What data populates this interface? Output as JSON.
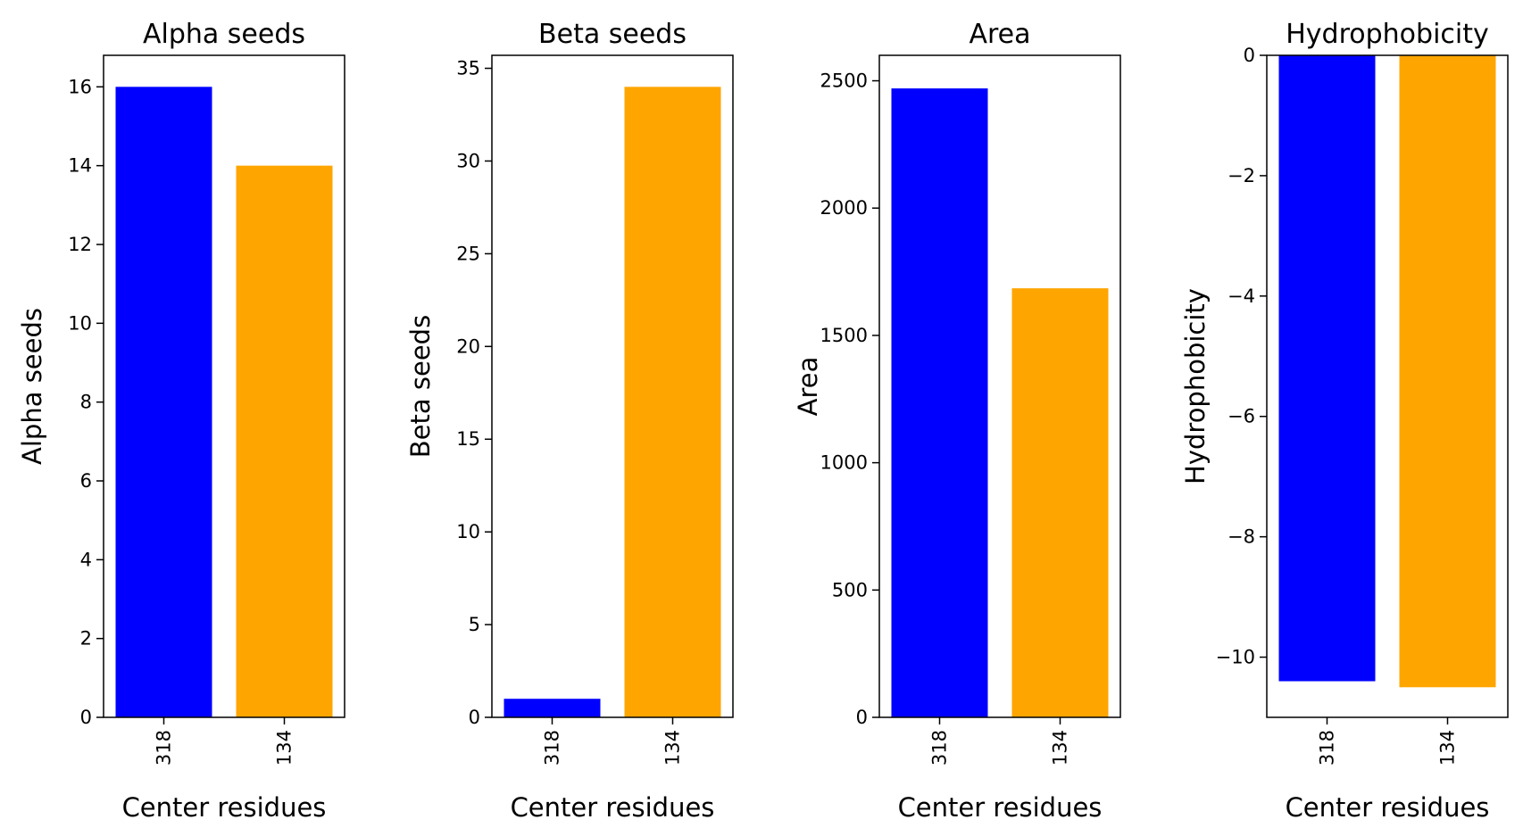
{
  "chart_data": [
    {
      "type": "bar",
      "title": "Alpha seeds",
      "xlabel": "Center residues",
      "ylabel": "Alpha seeds",
      "categories": [
        "318",
        "134"
      ],
      "values": [
        16,
        14
      ],
      "colors": [
        "#0000ff",
        "#ffa500"
      ],
      "ylim": [
        0,
        16.8
      ],
      "yticks": [
        0,
        2,
        4,
        6,
        8,
        10,
        12,
        14,
        16
      ],
      "grid": false
    },
    {
      "type": "bar",
      "title": "Beta seeds",
      "xlabel": "Center residues",
      "ylabel": "Beta seeds",
      "categories": [
        "318",
        "134"
      ],
      "values": [
        1,
        34
      ],
      "colors": [
        "#0000ff",
        "#ffa500"
      ],
      "ylim": [
        0,
        35.7
      ],
      "yticks": [
        0,
        5,
        10,
        15,
        20,
        25,
        30,
        35
      ],
      "grid": false
    },
    {
      "type": "bar",
      "title": "Area",
      "xlabel": "Center residues",
      "ylabel": "Area",
      "categories": [
        "318",
        "134"
      ],
      "values": [
        2470,
        1685
      ],
      "colors": [
        "#0000ff",
        "#ffa500"
      ],
      "ylim": [
        0,
        2600
      ],
      "yticks": [
        0,
        500,
        1000,
        1500,
        2000,
        2500
      ],
      "grid": false
    },
    {
      "type": "bar",
      "title": "Hydrophobicity",
      "xlabel": "Center residues",
      "ylabel": "Hydrophobicity",
      "categories": [
        "318",
        "134"
      ],
      "values": [
        -10.4,
        -10.5
      ],
      "colors": [
        "#0000ff",
        "#ffa500"
      ],
      "ylim": [
        -11,
        0
      ],
      "yticks": [
        -10,
        -8,
        -6,
        -4,
        -2,
        0
      ],
      "grid": false
    }
  ]
}
